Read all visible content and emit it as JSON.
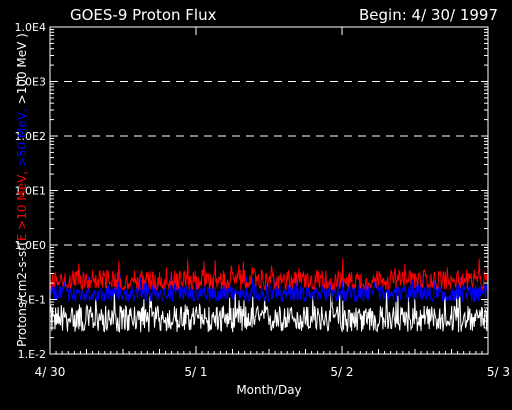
{
  "chart_data": {
    "type": "line",
    "title": "GOES-9 Proton Flux",
    "subtitle": "Begin: 4/ 30/ 1997",
    "xlabel": "Month/Day",
    "ylabel_parts": [
      {
        "text": "Protons/cm2-s-sr(",
        "color": "#ffffff"
      },
      {
        "text": "E >10 MeV, ",
        "color": "#ff0000"
      },
      {
        "text": ">50 MeV, ",
        "color": "#0000ff"
      },
      {
        "text": ">100 MeV )",
        "color": "#ffffff"
      }
    ],
    "y_scale": "log",
    "ylim": [
      0.01,
      10000
    ],
    "y_ticks": [
      {
        "value": 10000,
        "label": "1.0E4"
      },
      {
        "value": 1000,
        "label": "1.0E3"
      },
      {
        "value": 100,
        "label": "1.0E2"
      },
      {
        "value": 10,
        "label": "1.0E1"
      },
      {
        "value": 1,
        "label": "1.0E0"
      },
      {
        "value": 0.1,
        "label": "1.E-1"
      },
      {
        "value": 0.01,
        "label": "1.E-2"
      }
    ],
    "y_gridlines": [
      1,
      10,
      100,
      1000
    ],
    "x_range_days": [
      0,
      3
    ],
    "x_ticks": [
      {
        "value": 0,
        "label": "4/ 30"
      },
      {
        "value": 1,
        "label": "5/ 1"
      },
      {
        "value": 2,
        "label": "5/ 2"
      },
      {
        "value": 3,
        "label": "5/ 3"
      }
    ],
    "series": [
      {
        "name": "E >10 MeV",
        "color": "#ff0000",
        "level": 0.22,
        "min": 0.15,
        "max": 0.6
      },
      {
        "name": ">50 MeV",
        "color": "#0000ff",
        "level": 0.13,
        "min": 0.09,
        "max": 0.3
      },
      {
        "name": ">100 MeV",
        "color": "#ffffff",
        "level": 0.045,
        "min": 0.025,
        "max": 0.15
      }
    ]
  }
}
